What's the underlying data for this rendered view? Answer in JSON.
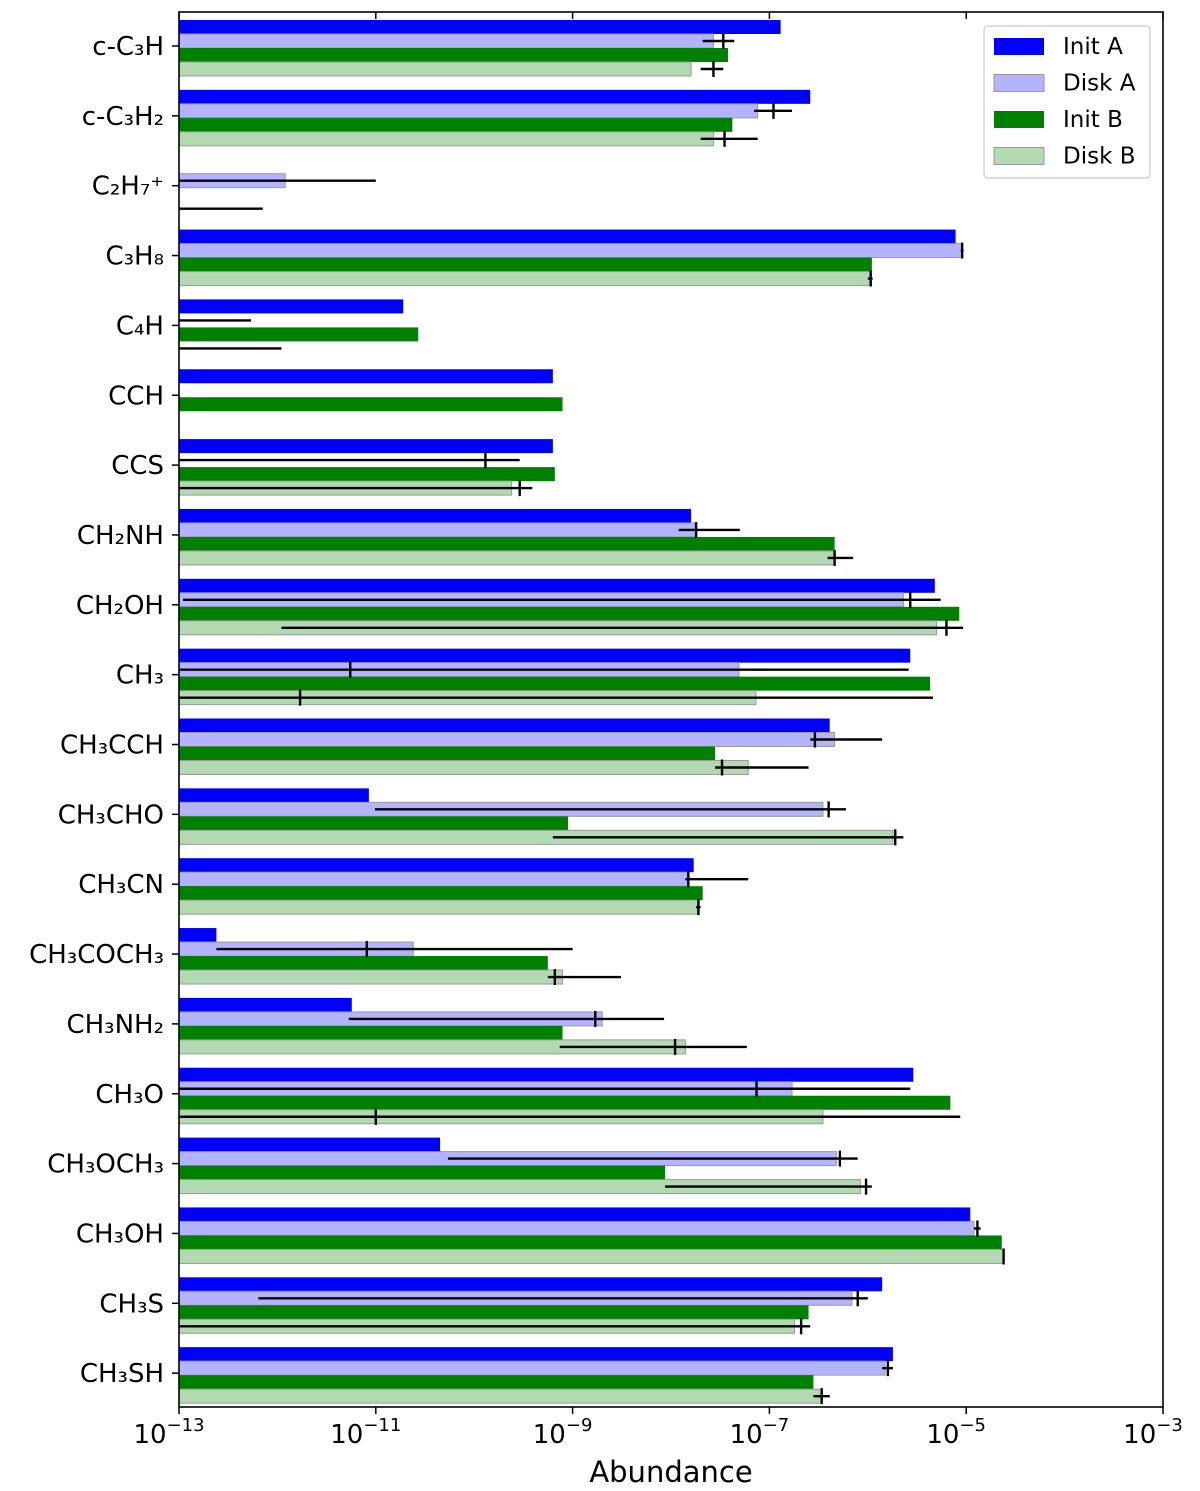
{
  "chart_data": {
    "type": "bar",
    "orientation": "horizontal",
    "xscale": "log",
    "xlabel": "Abundance",
    "xlim": [
      1e-13,
      0.001
    ],
    "xticks": [
      1e-13,
      1e-11,
      1e-09,
      1e-07,
      1e-05,
      0.001
    ],
    "xtick_labels": [
      {
        "base": "10",
        "exp": "−13"
      },
      {
        "base": "10",
        "exp": "−11"
      },
      {
        "base": "10",
        "exp": "−9"
      },
      {
        "base": "10",
        "exp": "−7"
      },
      {
        "base": "10",
        "exp": "−5"
      },
      {
        "base": "10",
        "exp": "−3"
      }
    ],
    "legend_position": "top-right",
    "series": [
      {
        "name": "Init A",
        "color": "#0000ff",
        "edge": "none"
      },
      {
        "name": "Disk A",
        "color": "#b3b3ff",
        "edge": "#9a9a9a"
      },
      {
        "name": "Init B",
        "color": "#008000",
        "edge": "none"
      },
      {
        "name": "Disk B",
        "color": "#b3d9b3",
        "edge": "#9a9a9a"
      }
    ],
    "categories": [
      "c-C₃H",
      "c-C₃H₂",
      "C₂H₇⁺",
      "C₃H₈",
      "C₄H",
      "CCH",
      "CCS",
      "CH₂NH",
      "CH₂OH",
      "CH₃",
      "CH₃CCH",
      "CH₃CHO",
      "CH₃CN",
      "CH₃COCH₃",
      "CH₃NH₂",
      "CH₃O",
      "CH₃OCH₃",
      "CH₃OH",
      "CH₃S",
      "CH₃SH"
    ],
    "values": [
      [
        1.3e-07,
        2.7e-08,
        3.8e-08,
        1.6e-08
      ],
      [
        2.6e-07,
        7.6e-08,
        4.2e-08,
        2.7e-08
      ],
      [
        null,
        1.2e-12,
        null,
        null
      ],
      [
        7.8e-06,
        9.1e-06,
        1.1e-06,
        1.05e-06
      ],
      [
        1.9e-11,
        null,
        2.7e-11,
        null
      ],
      [
        6.3e-10,
        null,
        7.9e-10,
        null
      ],
      [
        6.3e-10,
        null,
        6.6e-10,
        2.4e-10
      ],
      [
        1.6e-08,
        1.8e-08,
        4.6e-07,
        4.6e-07
      ],
      [
        4.8e-06,
        2.3e-06,
        8.5e-06,
        5e-06
      ],
      [
        2.7e-06,
        4.9e-08,
        4.3e-06,
        7.3e-08
      ],
      [
        4.1e-07,
        4.6e-07,
        2.8e-08,
        6.1e-08
      ],
      [
        8.5e-12,
        3.5e-07,
        9e-10,
        1.8e-06
      ],
      [
        1.7e-08,
        1.5e-08,
        2.1e-08,
        1.9e-08
      ],
      [
        2.4e-13,
        2.4e-11,
        5.6e-10,
        7.9e-10
      ],
      [
        5.7e-12,
        2e-09,
        7.9e-10,
        1.4e-08
      ],
      [
        2.9e-06,
        1.7e-07,
        6.9e-06,
        3.5e-07
      ],
      [
        4.5e-11,
        4.8e-07,
        8.7e-09,
        8.4e-07
      ],
      [
        1.1e-05,
        1.2e-05,
        2.3e-05,
        2.4e-05
      ],
      [
        1.4e-06,
        6.9e-07,
        2.5e-07,
        1.8e-07
      ],
      [
        1.8e-06,
        1.5e-06,
        2.8e-07,
        3.4e-07
      ]
    ],
    "errorbars_disk_a": [
      [
        3.4e-08,
        2.1e-08,
        4.4e-08
      ],
      [
        1.1e-07,
        7e-08,
        1.7e-07
      ],
      [
        null,
        1e-13,
        1e-11
      ],
      [
        9.1e-06,
        8.8e-06,
        9.4e-06
      ],
      [
        null,
        1e-13,
        5.4e-13
      ],
      null,
      [
        1.3e-10,
        1e-13,
        2.9e-10
      ],
      [
        1.8e-08,
        1.2e-08,
        5e-08
      ],
      [
        2.7e-06,
        1.1e-13,
        5.5e-06
      ],
      [
        5.5e-12,
        1e-13,
        2.6e-06
      ],
      [
        2.9e-07,
        2.6e-07,
        1.4e-06
      ],
      [
        4e-07,
        9.8e-12,
        6e-07
      ],
      [
        1.5e-08,
        1.4e-08,
        6.1e-08
      ],
      [
        8.1e-12,
        2.4e-13,
        1e-09
      ],
      [
        1.7e-09,
        5.3e-12,
        8.5e-09
      ],
      [
        7.4e-08,
        1e-13,
        2.7e-06
      ],
      [
        5.2e-07,
        5.4e-11,
        7.9e-07
      ],
      [
        1.3e-05,
        1.2e-05,
        1.4e-05
      ],
      [
        7.9e-07,
        6.4e-13,
        1e-06
      ],
      [
        1.6e-06,
        1.4e-06,
        1.8e-06
      ]
    ],
    "errorbars_disk_b": [
      [
        2.7e-08,
        2e-08,
        3.4e-08
      ],
      [
        3.5e-08,
        2e-08,
        7.6e-08
      ],
      [
        null,
        1e-13,
        7.1e-13
      ],
      [
        1.07e-06,
        1e-06,
        1.12e-06
      ],
      [
        null,
        1e-13,
        1.1e-12
      ],
      null,
      [
        2.9e-10,
        1e-13,
        3.9e-10
      ],
      [
        4.6e-07,
        3.9e-07,
        7.1e-07
      ],
      [
        6.3e-06,
        1.1e-12,
        9.3e-06
      ],
      [
        1.7e-12,
        1e-13,
        4.6e-06
      ],
      [
        3.3e-08,
        2.8e-08,
        2.5e-07
      ],
      [
        1.9e-06,
        6.3e-10,
        2.3e-06
      ],
      [
        1.9e-08,
        1.8e-08,
        2e-08
      ],
      [
        6.6e-10,
        5.6e-10,
        3.1e-09
      ],
      [
        1.1e-08,
        7.4e-10,
        5.9e-08
      ],
      [
        1e-11,
        1e-13,
        8.7e-06
      ],
      [
        9.6e-07,
        8.7e-09,
        1.1e-06
      ],
      [
        2.4e-05,
        2.35e-05,
        2.45e-05
      ],
      [
        2.1e-07,
        1e-13,
        2.6e-07
      ],
      [
        3.4e-07,
        2.8e-07,
        4.1e-07
      ]
    ]
  }
}
